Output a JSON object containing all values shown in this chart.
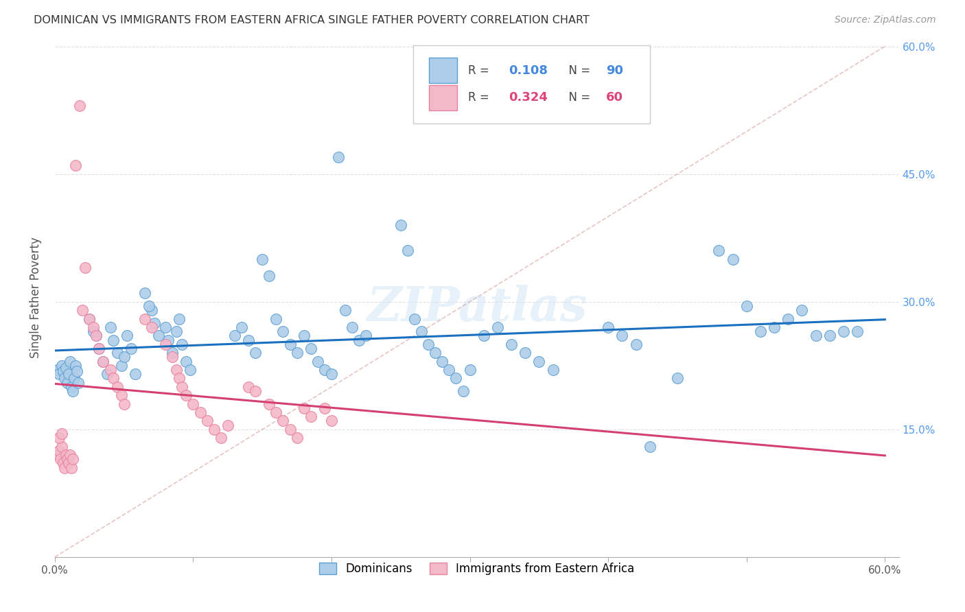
{
  "title": "DOMINICAN VS IMMIGRANTS FROM EASTERN AFRICA SINGLE FATHER POVERTY CORRELATION CHART",
  "source": "Source: ZipAtlas.com",
  "ylabel": "Single Father Poverty",
  "xlim": [
    0,
    0.6
  ],
  "ylim": [
    0,
    0.6
  ],
  "xticks": [
    0.0,
    0.1,
    0.2,
    0.3,
    0.4,
    0.5,
    0.6
  ],
  "yticks_right": [
    0.15,
    0.3,
    0.45,
    0.6
  ],
  "ytick_labels_right": [
    "15.0%",
    "30.0%",
    "45.0%",
    "60.0%"
  ],
  "xtick_labels": [
    "0.0%",
    "",
    "",
    "",
    "",
    "",
    "60.0%"
  ],
  "dominican_fill": "#aecde8",
  "dominican_edge": "#5b9fd4",
  "immigrant_fill": "#f4b8cb",
  "immigrant_edge": "#e8829e",
  "trend_dom_color": "#1a6fbe",
  "trend_imm_color": "#d44070",
  "diag_color": "#ddbbbb",
  "R_dominican": 0.108,
  "N_dominican": 90,
  "R_immigrant": 0.324,
  "N_immigrant": 60,
  "legend_label_dominican": "Dominicans",
  "legend_label_immigrant": "Immigrants from Eastern Africa",
  "watermark": "ZIPatlas",
  "background_color": "#ffffff",
  "grid_color": "#e0e0e0"
}
